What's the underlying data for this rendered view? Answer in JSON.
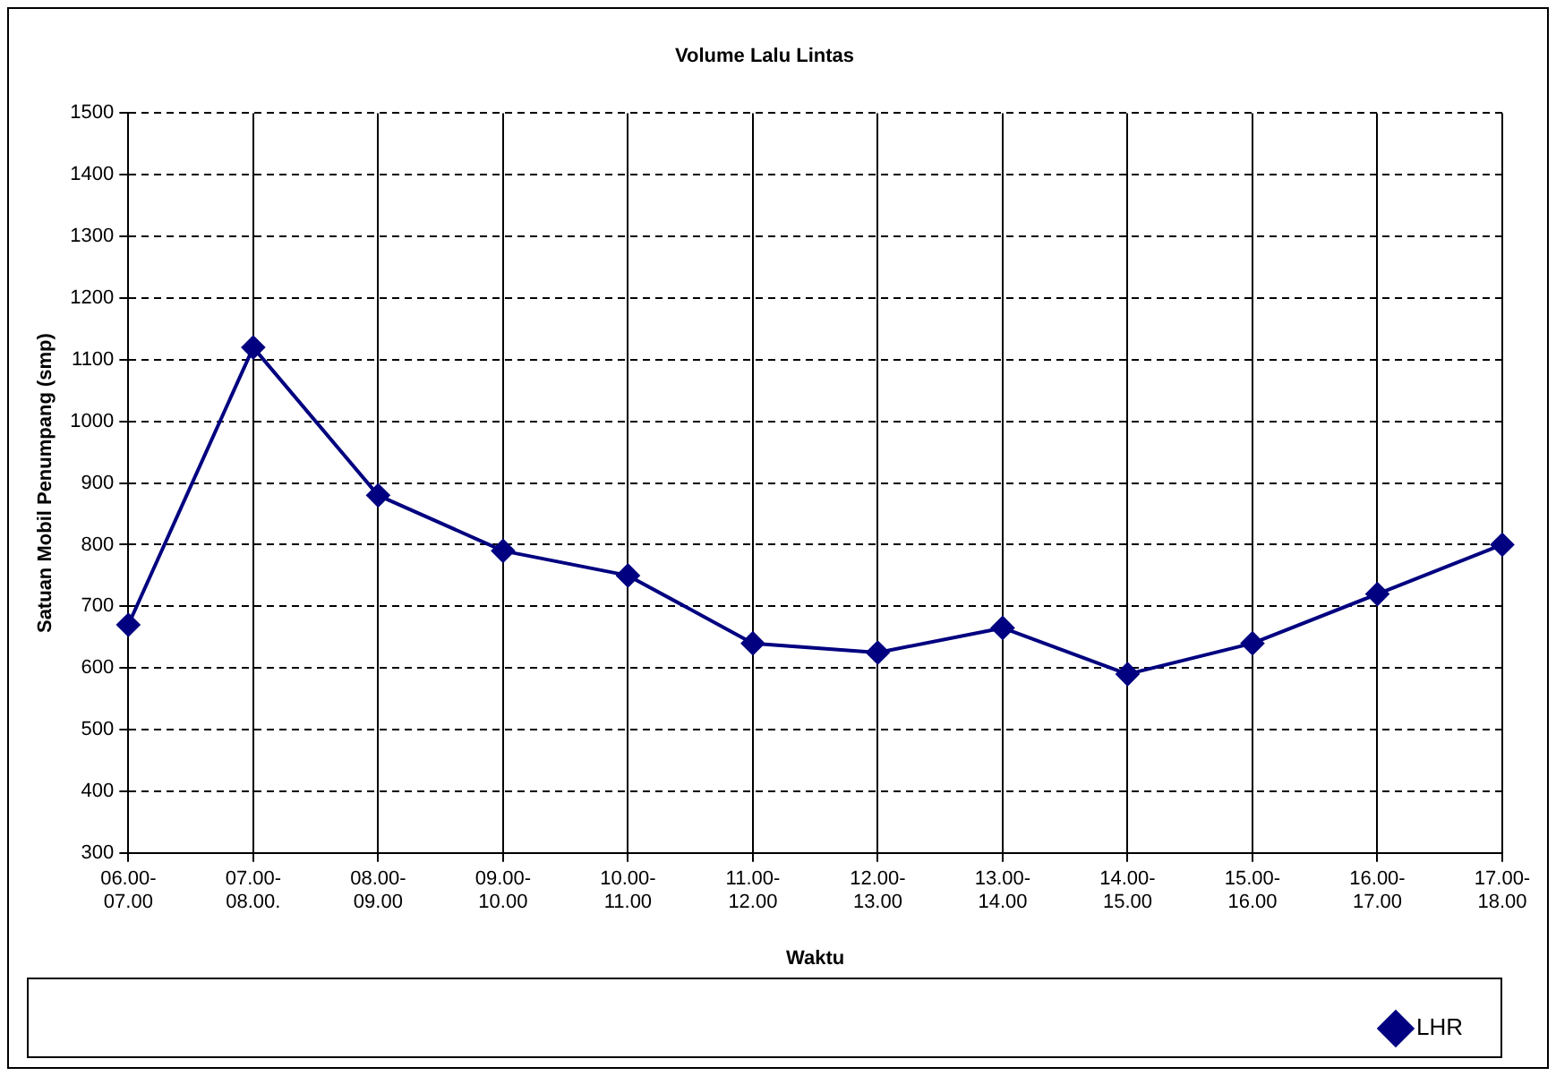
{
  "chart_data": {
    "type": "line",
    "title": "Volume Lalu Lintas",
    "xlabel": "Waktu",
    "ylabel": "Satuan Mobil Penumpang (smp)",
    "categories": [
      "06.00-07.00",
      "07.00-08.00.",
      "08.00-09.00",
      "09.00-10.00",
      "10.00-11.00",
      "11.00-12.00",
      "12.00-13.00",
      "13.00-14.00",
      "14.00-15.00",
      "15.00-16.00",
      "16.00-17.00",
      "17.00-18.00"
    ],
    "series": [
      {
        "name": "LHR",
        "color": "#000080",
        "values": [
          670,
          1120,
          880,
          790,
          750,
          640,
          625,
          665,
          590,
          640,
          720,
          800
        ]
      }
    ],
    "ylim": [
      300,
      1500
    ],
    "yticks": [
      300,
      400,
      500,
      600,
      700,
      800,
      900,
      1000,
      1100,
      1200,
      1300,
      1400,
      1500
    ],
    "grid": true,
    "legend": "bottom right",
    "marker": "diamond",
    "line_style": "solid"
  }
}
